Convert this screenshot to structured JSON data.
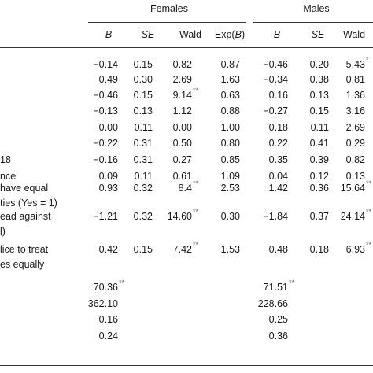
{
  "groups": {
    "females": "Females",
    "males": "Males"
  },
  "columns": {
    "females": {
      "b": "B",
      "se": "SE",
      "wald": "Wald",
      "exp_prefix": "Exp(",
      "exp_b": "B",
      "exp_suffix": ")"
    },
    "males": {
      "b": "B",
      "se": "SE",
      "wald": "Wald"
    }
  },
  "rows": [
    {
      "label": "",
      "f": {
        "b": "−0.14",
        "se": "0.15",
        "wald": "0.82",
        "wsig": "",
        "exp": "0.87"
      },
      "m": {
        "b": "−0.46",
        "se": "0.20",
        "wald": "5.43",
        "wsig": "*"
      }
    },
    {
      "label": "",
      "f": {
        "b": "0.49",
        "se": "0.30",
        "wald": "2.69",
        "wsig": "",
        "exp": "1.63"
      },
      "m": {
        "b": "−0.34",
        "se": "0.38",
        "wald": "0.81",
        "wsig": ""
      }
    },
    {
      "label": "",
      "f": {
        "b": "−0.46",
        "se": "0.15",
        "wald": "9.14",
        "wsig": "**",
        "exp": "0.63"
      },
      "m": {
        "b": "0.16",
        "se": "0.13",
        "wald": "1.36",
        "wsig": ""
      }
    },
    {
      "label": "",
      "f": {
        "b": "−0.13",
        "se": "0.13",
        "wald": "1.12",
        "wsig": "",
        "exp": "0.88"
      },
      "m": {
        "b": "−0.27",
        "se": "0.15",
        "wald": "3.16",
        "wsig": ""
      }
    },
    {
      "label": "",
      "f": {
        "b": "0.00",
        "se": "0.11",
        "wald": "0.00",
        "wsig": "",
        "exp": "1.00"
      },
      "m": {
        "b": "0.18",
        "se": "0.11",
        "wald": "2.69",
        "wsig": ""
      }
    },
    {
      "label": "",
      "f": {
        "b": "−0.22",
        "se": "0.31",
        "wald": "0.50",
        "wsig": "",
        "exp": "0.80"
      },
      "m": {
        "b": "0.22",
        "se": "0.41",
        "wald": "0.29",
        "wsig": ""
      }
    },
    {
      "label": "18",
      "f": {
        "b": "−0.16",
        "se": "0.31",
        "wald": "0.27",
        "wsig": "",
        "exp": "0.85"
      },
      "m": {
        "b": "0.35",
        "se": "0.39",
        "wald": "0.82",
        "wsig": ""
      }
    },
    {
      "label": "nce",
      "f": {
        "b": "0.09",
        "se": "0.11",
        "wald": "0.61",
        "wsig": "",
        "exp": "1.09"
      },
      "m": {
        "b": "0.04",
        "se": "0.12",
        "wald": "0.13",
        "wsig": ""
      }
    },
    {
      "label": "have equal",
      "label2": "ties (Yes = 1)",
      "f": {
        "b": "0.93",
        "se": "0.32",
        "wald": "8.4",
        "wsig": "**",
        "exp": "2.53"
      },
      "m": {
        "b": "1.42",
        "se": "0.36",
        "wald": "15.64",
        "wsig": "**"
      }
    },
    {
      "label": "ead against",
      "label2": "l)",
      "f": {
        "b": "−1.21",
        "se": "0.32",
        "wald": "14.60",
        "wsig": "**",
        "exp": "0.30"
      },
      "m": {
        "b": "−1.84",
        "se": "0.37",
        "wald": "24.14",
        "wsig": "**"
      }
    },
    {
      "label": "lice to treat",
      "label2": "es equally",
      "f": {
        "b": "0.42",
        "se": "0.15",
        "wald": "7.42",
        "wsig": "**",
        "exp": "1.53"
      },
      "m": {
        "b": "0.48",
        "se": "0.18",
        "wald": "6.93",
        "wsig": "**"
      }
    }
  ],
  "stats": [
    {
      "f": "70.36",
      "fsig": "**",
      "m": "71.51",
      "msig": "**"
    },
    {
      "f": "362.10",
      "fsig": "",
      "m": "228.66",
      "msig": ""
    },
    {
      "f": "0.16",
      "fsig": "",
      "m": "0.25",
      "msig": ""
    },
    {
      "f": "0.24",
      "fsig": "",
      "m": "0.36",
      "msig": ""
    }
  ]
}
